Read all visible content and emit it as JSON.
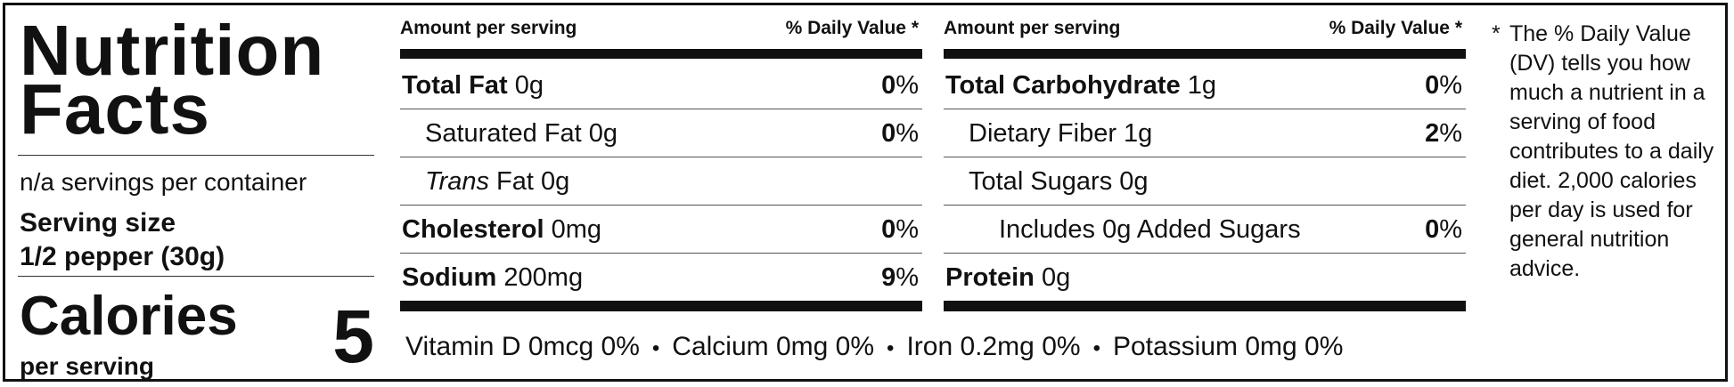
{
  "label": {
    "title_line1": "Nutrition",
    "title_line2": "Facts",
    "servings_per_container": "n/a servings per container",
    "serving_size_label": "Serving size",
    "serving_size_value": "1/2 pepper (30g)",
    "calories_label": "Calories",
    "calories_sub": "per serving",
    "calories_value": "5"
  },
  "header": {
    "amount_per_serving": "Amount per serving",
    "daily_value": "% Daily Value *"
  },
  "left_rows": [
    {
      "name": "Total Fat",
      "amount": " 0g",
      "dv": "0",
      "pct": "%"
    },
    {
      "name": "Saturated Fat 0g",
      "amount": "",
      "dv": "0",
      "pct": "%"
    },
    {
      "name_italic": "Trans",
      "name": " Fat 0g",
      "dv": "",
      "pct": ""
    },
    {
      "name": "Cholesterol",
      "amount": " 0mg",
      "dv": "0",
      "pct": "%"
    },
    {
      "name": "Sodium",
      "amount": " 200mg",
      "dv": "9",
      "pct": "%"
    }
  ],
  "right_rows": [
    {
      "name": "Total Carbohydrate",
      "amount": " 1g",
      "dv": "0",
      "pct": "%"
    },
    {
      "name": "Dietary Fiber 1g",
      "amount": "",
      "dv": "2",
      "pct": "%"
    },
    {
      "name": "Total Sugars 0g",
      "amount": "",
      "dv": "",
      "pct": ""
    },
    {
      "name": "Includes 0g Added Sugars",
      "amount": "",
      "dv": "0",
      "pct": "%"
    },
    {
      "name": "Protein",
      "amount": " 0g",
      "dv": "",
      "pct": ""
    }
  ],
  "vitamins": [
    "Vitamin D 0mcg 0%",
    "Calcium 0mg 0%",
    "Iron 0.2mg 0%",
    "Potassium 0mg 0%"
  ],
  "separator": "•",
  "footnote": {
    "star": "*",
    "text": "The % Daily Value (DV) tells you how much a nutrient in a serving of food contributes to a daily diet. 2,000 calories per day is used for general nutrition advice."
  }
}
